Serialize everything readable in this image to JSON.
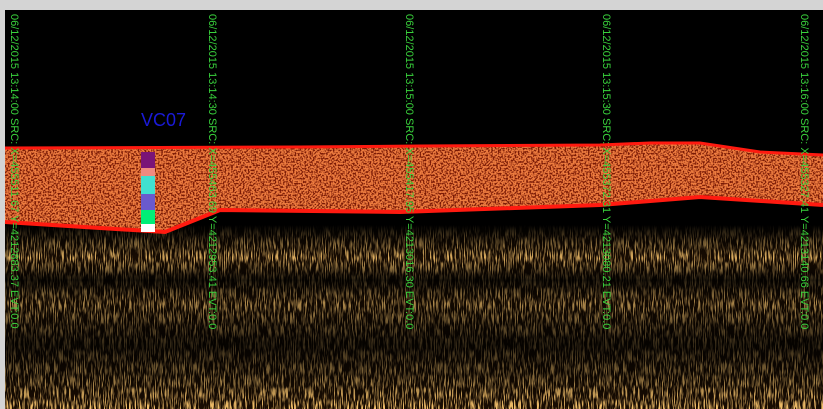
{
  "profile_label": "VC07",
  "trace_labels": [
    "06/12/2015 13:14:00  SRC: X=455511.67 Y=4212883.37 EVT:0.0",
    "06/12/2015 13:14:30  SRC: X=455463.69 Y=4212953.41 EVT:0.0",
    "06/12/2015 13:15:00  SRC: X=455417.95 Y=4213016.30 EVT:0.0",
    "06/12/2015 13:15:30  SRC: X=455372.31 Y=4213080.21 EVT:0.0",
    "06/12/2015 13:16:00  SRC: X=455327.41 Y=4213140.66 EVT:0.0"
  ]
}
